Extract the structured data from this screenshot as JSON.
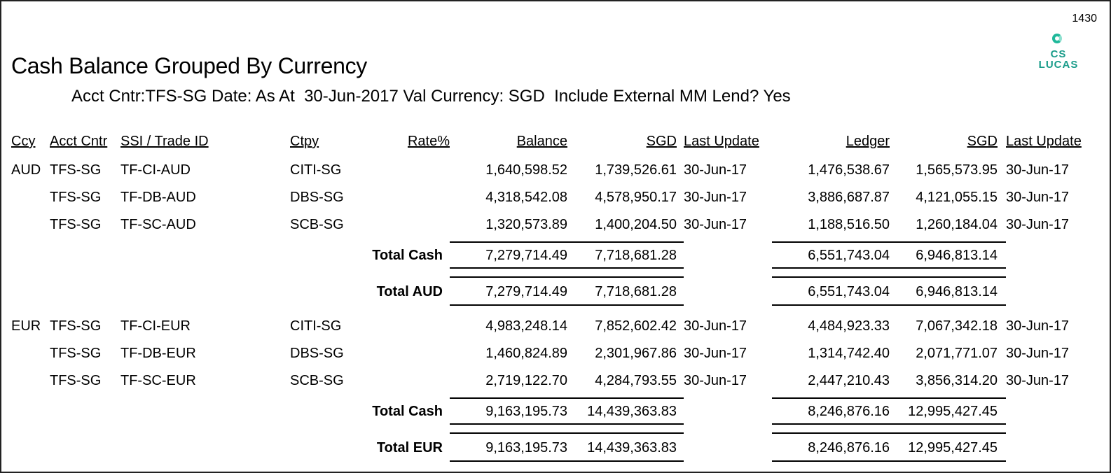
{
  "page_number": "1430",
  "logo": {
    "text_line1": "CS",
    "text_line2": "LUCAS",
    "color": "#1a9c8a"
  },
  "report": {
    "title": "Cash Balance Grouped By Currency",
    "params": "Acct Cntr:TFS-SG Date: As At  30-Jun-2017 Val Currency: SGD  Include External MM Lend? Yes"
  },
  "columns": {
    "ccy": "Ccy",
    "acct_cntr": "Acct Cntr",
    "ssi": "SSI / Trade ID",
    "ctpy": "Ctpy",
    "rate": "Rate%",
    "balance": "Balance",
    "sgd1": "SGD",
    "last_update1": "Last Update",
    "ledger": "Ledger",
    "sgd2": "SGD",
    "last_update2": "Last Update"
  },
  "groups": [
    {
      "ccy": "AUD",
      "rows": [
        {
          "acct": "TFS-SG",
          "ssi": "TF-CI-AUD",
          "ctpy": "CITI-SG",
          "balance": "1,640,598.52",
          "sgd1": "1,739,526.61",
          "upd1": "30-Jun-17",
          "ledger": "1,476,538.67",
          "sgd2": "1,565,573.95",
          "upd2": "30-Jun-17"
        },
        {
          "acct": "TFS-SG",
          "ssi": "TF-DB-AUD",
          "ctpy": "DBS-SG",
          "balance": "4,318,542.08",
          "sgd1": "4,578,950.17",
          "upd1": "30-Jun-17",
          "ledger": "3,886,687.87",
          "sgd2": "4,121,055.15",
          "upd2": "30-Jun-17"
        },
        {
          "acct": "TFS-SG",
          "ssi": "TF-SC-AUD",
          "ctpy": "SCB-SG",
          "balance": "1,320,573.89",
          "sgd1": "1,400,204.50",
          "upd1": "30-Jun-17",
          "ledger": "1,188,516.50",
          "sgd2": "1,260,184.04",
          "upd2": "30-Jun-17"
        }
      ],
      "total_cash": {
        "label": "Total Cash",
        "balance": "7,279,714.49",
        "sgd1": "7,718,681.28",
        "ledger": "6,551,743.04",
        "sgd2": "6,946,813.14"
      },
      "total_ccy": {
        "label": "Total AUD",
        "balance": "7,279,714.49",
        "sgd1": "7,718,681.28",
        "ledger": "6,551,743.04",
        "sgd2": "6,946,813.14"
      }
    },
    {
      "ccy": "EUR",
      "rows": [
        {
          "acct": "TFS-SG",
          "ssi": "TF-CI-EUR",
          "ctpy": "CITI-SG",
          "balance": "4,983,248.14",
          "sgd1": "7,852,602.42",
          "upd1": "30-Jun-17",
          "ledger": "4,484,923.33",
          "sgd2": "7,067,342.18",
          "upd2": "30-Jun-17"
        },
        {
          "acct": "TFS-SG",
          "ssi": "TF-DB-EUR",
          "ctpy": "DBS-SG",
          "balance": "1,460,824.89",
          "sgd1": "2,301,967.86",
          "upd1": "30-Jun-17",
          "ledger": "1,314,742.40",
          "sgd2": "2,071,771.07",
          "upd2": "30-Jun-17"
        },
        {
          "acct": "TFS-SG",
          "ssi": "TF-SC-EUR",
          "ctpy": "SCB-SG",
          "balance": "2,719,122.70",
          "sgd1": "4,284,793.55",
          "upd1": "30-Jun-17",
          "ledger": "2,447,210.43",
          "sgd2": "3,856,314.20",
          "upd2": "30-Jun-17"
        }
      ],
      "total_cash": {
        "label": "Total Cash",
        "balance": "9,163,195.73",
        "sgd1": "14,439,363.83",
        "ledger": "8,246,876.16",
        "sgd2": "12,995,427.45"
      },
      "total_ccy": {
        "label": "Total EUR",
        "balance": "9,163,195.73",
        "sgd1": "14,439,363.83",
        "ledger": "8,246,876.16",
        "sgd2": "12,995,427.45"
      }
    }
  ]
}
